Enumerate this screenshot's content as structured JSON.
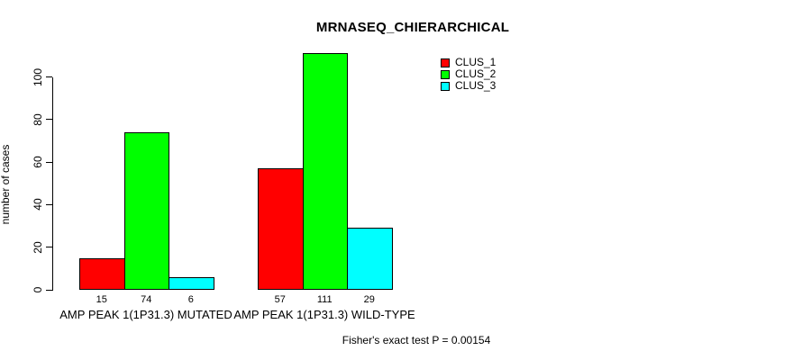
{
  "chart_data": {
    "type": "bar",
    "title": "MRNASEQ_CHIERARCHICAL",
    "ylabel": "number of cases",
    "xlabel": "",
    "categories": [
      "AMP PEAK 1(1P31.3) MUTATED",
      "AMP PEAK 1(1P31.3) WILD-TYPE"
    ],
    "series": [
      {
        "name": "CLUS_1",
        "color": "#ff0000",
        "values": [
          15,
          57
        ]
      },
      {
        "name": "CLUS_2",
        "color": "#00ff00",
        "values": [
          74,
          111
        ]
      },
      {
        "name": "CLUS_3",
        "color": "#00ffff",
        "values": [
          6,
          29
        ]
      }
    ],
    "bar_value_labels": [
      [
        15,
        74,
        6
      ],
      [
        57,
        111,
        29
      ]
    ],
    "yticks": [
      0,
      20,
      40,
      60,
      80,
      100
    ],
    "ylim": [
      0,
      100
    ],
    "grid": false,
    "legend_position": "top-right",
    "annotation": "Fisher's exact test P = 0.00154"
  },
  "colors": {
    "background": "#ffffff",
    "axis": "#000000",
    "clus_1": "#ff0000",
    "clus_2": "#00ff00",
    "clus_3": "#00ffff"
  }
}
